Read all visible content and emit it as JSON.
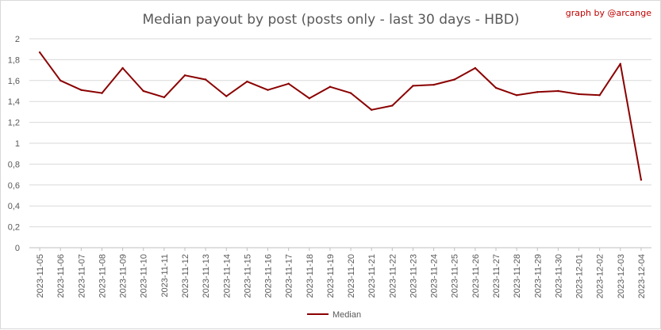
{
  "chart_data": {
    "type": "line",
    "title": "Median payout by post (posts only - last 30 days - HBD)",
    "credit": "graph by @arcange",
    "xlabel": "",
    "ylabel": "",
    "ylim": [
      0,
      2
    ],
    "yticks": [
      "0",
      "0,2",
      "0,4",
      "0,6",
      "0,8",
      "1",
      "1,2",
      "1,4",
      "1,6",
      "1,8",
      "2"
    ],
    "grid": true,
    "legend_position": "bottom",
    "line_color": "#8b0000",
    "x": [
      "2023-11-05",
      "2023-11-06",
      "2023-11-07",
      "2023-11-08",
      "2023-11-09",
      "2023-11-10",
      "2023-11-11",
      "2023-11-12",
      "2023-11-13",
      "2023-11-14",
      "2023-11-15",
      "2023-11-16",
      "2023-11-17",
      "2023-11-18",
      "2023-11-19",
      "2023-11-20",
      "2023-11-21",
      "2023-11-22",
      "2023-11-23",
      "2023-11-24",
      "2023-11-25",
      "2023-11-26",
      "2023-11-27",
      "2023-11-28",
      "2023-11-29",
      "2023-11-30",
      "2023-12-01",
      "2023-12-02",
      "2023-12-03",
      "2023-12-04"
    ],
    "series": [
      {
        "name": "Median",
        "values": [
          1.87,
          1.6,
          1.51,
          1.48,
          1.72,
          1.5,
          1.44,
          1.65,
          1.61,
          1.45,
          1.59,
          1.51,
          1.57,
          1.43,
          1.54,
          1.48,
          1.32,
          1.36,
          1.55,
          1.56,
          1.61,
          1.72,
          1.53,
          1.46,
          1.49,
          1.5,
          1.47,
          1.46,
          1.76,
          0.65
        ]
      }
    ]
  }
}
